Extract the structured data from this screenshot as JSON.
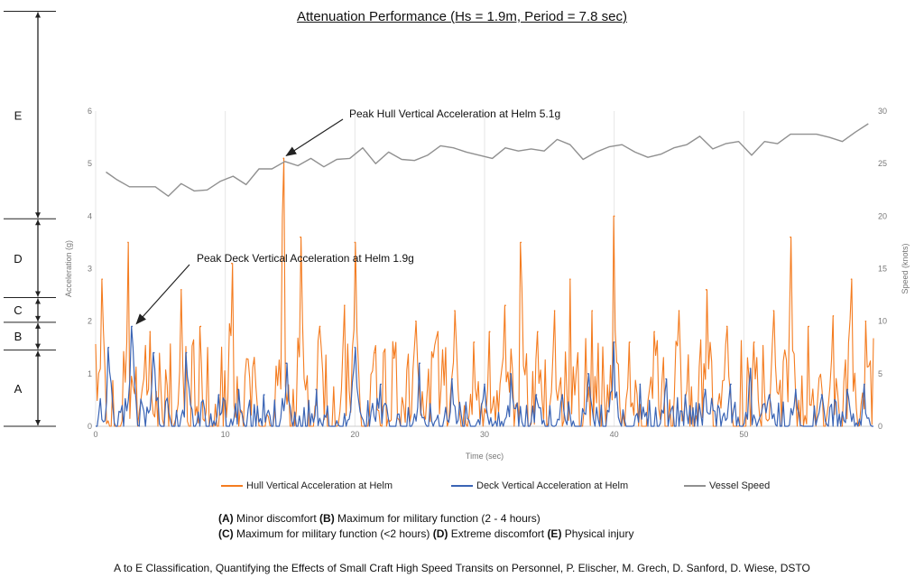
{
  "title": "Attenuation Performance (Hs = 1.9m, Period = 7.8 sec)",
  "chart_data": {
    "type": "line",
    "xlabel": "Time (sec)",
    "ylabel_left": "Acceleration (g)",
    "ylabel_right": "Speed (knots)",
    "xlim": [
      0,
      60
    ],
    "ylim_left": [
      0,
      6
    ],
    "ylim_right": [
      0,
      30
    ],
    "x_ticks": [
      "0",
      "10",
      "20",
      "30",
      "40",
      "50"
    ],
    "y_ticks_left": [
      "0",
      "1",
      "2",
      "3",
      "4",
      "5",
      "6"
    ],
    "y_ticks_right": [
      "0",
      "5",
      "10",
      "15",
      "20",
      "25",
      "30"
    ],
    "grid": "vertical",
    "legend_position": "bottom",
    "series": [
      {
        "name": "Hull Vertical Acceleration at Helm",
        "color": "#f47c20",
        "axis": "left",
        "peaks": [
          [
            0.5,
            2.8
          ],
          [
            2.5,
            3.5
          ],
          [
            4.2,
            1.8
          ],
          [
            6.6,
            2.6
          ],
          [
            8.1,
            1.9
          ],
          [
            10.5,
            3.1
          ],
          [
            12.2,
            1.2
          ],
          [
            14.5,
            5.1
          ],
          [
            15.8,
            3.6
          ],
          [
            17.3,
            1.9
          ],
          [
            19.2,
            2.3
          ],
          [
            20.0,
            3.5
          ],
          [
            21.5,
            1.4
          ],
          [
            23.0,
            1.3
          ],
          [
            24.7,
            2.0
          ],
          [
            26.4,
            1.8
          ],
          [
            27.7,
            2.2
          ],
          [
            29.2,
            1.6
          ],
          [
            30.4,
            1.8
          ],
          [
            31.6,
            2.3
          ],
          [
            32.8,
            3.5
          ],
          [
            34.1,
            1.8
          ],
          [
            35.4,
            2.2
          ],
          [
            36.6,
            2.8
          ],
          [
            38.3,
            2.2
          ],
          [
            40.0,
            4.0
          ],
          [
            41.2,
            1.6
          ],
          [
            43.1,
            1.8
          ],
          [
            45.0,
            2.2
          ],
          [
            47.1,
            2.6
          ],
          [
            48.7,
            1.9
          ],
          [
            50.8,
            1.6
          ],
          [
            52.3,
            2.2
          ],
          [
            53.6,
            3.6
          ],
          [
            55.0,
            1.9
          ],
          [
            56.9,
            2.1
          ],
          [
            58.3,
            2.8
          ],
          [
            59.4,
            2.0
          ]
        ]
      },
      {
        "name": "Deck Vertical Acceleration at Helm",
        "color": "#3a64b5",
        "axis": "left",
        "peaks": [
          [
            1.0,
            1.5
          ],
          [
            2.8,
            1.9
          ],
          [
            4.5,
            1.4
          ],
          [
            7.0,
            1.4
          ],
          [
            9.5,
            0.6
          ],
          [
            11.0,
            0.7
          ],
          [
            13.0,
            0.6
          ],
          [
            14.7,
            1.2
          ],
          [
            17.0,
            0.7
          ],
          [
            20.0,
            1.5
          ],
          [
            22.0,
            0.8
          ],
          [
            25.0,
            1.2
          ],
          [
            27.5,
            0.9
          ],
          [
            30.0,
            0.8
          ],
          [
            32.0,
            1.0
          ],
          [
            34.0,
            0.6
          ],
          [
            36.0,
            0.6
          ],
          [
            38.0,
            1.0
          ],
          [
            40.0,
            1.6
          ],
          [
            42.0,
            0.8
          ],
          [
            44.0,
            0.9
          ],
          [
            45.5,
            0.6
          ],
          [
            47.0,
            0.7
          ],
          [
            49.0,
            0.8
          ],
          [
            50.5,
            1.1
          ],
          [
            52.0,
            0.6
          ],
          [
            54.0,
            0.7
          ],
          [
            56.0,
            0.6
          ],
          [
            58.0,
            0.7
          ],
          [
            59.3,
            0.8
          ]
        ]
      },
      {
        "name": "Vessel Speed",
        "color": "#909090",
        "axis": "right",
        "points": [
          [
            0.8,
            24.2
          ],
          [
            1.6,
            23.5
          ],
          [
            2.6,
            22.8
          ],
          [
            3.6,
            22.8
          ],
          [
            4.6,
            22.8
          ],
          [
            5.6,
            21.9
          ],
          [
            6.6,
            23.1
          ],
          [
            7.6,
            22.4
          ],
          [
            8.6,
            22.5
          ],
          [
            9.6,
            23.3
          ],
          [
            10.6,
            23.8
          ],
          [
            11.6,
            23.0
          ],
          [
            12.6,
            24.5
          ],
          [
            13.6,
            24.5
          ],
          [
            14.6,
            25.2
          ],
          [
            15.6,
            24.8
          ],
          [
            16.6,
            25.5
          ],
          [
            17.6,
            24.7
          ],
          [
            18.6,
            25.4
          ],
          [
            19.6,
            25.5
          ],
          [
            20.6,
            26.5
          ],
          [
            21.6,
            25.0
          ],
          [
            22.6,
            26.1
          ],
          [
            23.6,
            25.4
          ],
          [
            24.6,
            25.3
          ],
          [
            25.6,
            25.8
          ],
          [
            26.6,
            26.7
          ],
          [
            27.6,
            26.5
          ],
          [
            28.6,
            26.1
          ],
          [
            29.6,
            25.8
          ],
          [
            30.6,
            25.5
          ],
          [
            31.6,
            26.5
          ],
          [
            32.6,
            26.2
          ],
          [
            33.6,
            26.4
          ],
          [
            34.6,
            26.2
          ],
          [
            35.6,
            27.3
          ],
          [
            36.6,
            26.8
          ],
          [
            37.6,
            25.4
          ],
          [
            38.6,
            26.1
          ],
          [
            39.6,
            26.6
          ],
          [
            40.6,
            26.8
          ],
          [
            41.6,
            26.1
          ],
          [
            42.6,
            25.6
          ],
          [
            43.6,
            25.9
          ],
          [
            44.6,
            26.5
          ],
          [
            45.6,
            26.8
          ],
          [
            46.6,
            27.6
          ],
          [
            47.6,
            26.4
          ],
          [
            48.6,
            26.9
          ],
          [
            49.6,
            27.1
          ],
          [
            50.6,
            25.8
          ],
          [
            51.6,
            27.1
          ],
          [
            52.6,
            26.9
          ],
          [
            53.6,
            27.8
          ],
          [
            54.6,
            27.8
          ],
          [
            55.6,
            27.8
          ],
          [
            56.6,
            27.5
          ],
          [
            57.6,
            27.1
          ],
          [
            58.6,
            28.0
          ],
          [
            59.6,
            28.8
          ]
        ]
      }
    ],
    "annotations": [
      {
        "text": "Peak Hull Vertical Acceleration at Helm 5.1g",
        "x": 14.5,
        "y": 5.1
      },
      {
        "text": "Peak Deck Vertical Acceleration at Helm 1.9g",
        "x": 2.8,
        "y": 1.9
      }
    ],
    "bands": [
      {
        "label": "A",
        "from": 0,
        "to": 1.45
      },
      {
        "label": "B",
        "from": 1.45,
        "to": 1.98
      },
      {
        "label": "C",
        "from": 1.98,
        "to": 2.45
      },
      {
        "label": "D",
        "from": 2.45,
        "to": 3.95
      },
      {
        "label": "E",
        "from": 3.95,
        "to": 7.9
      }
    ]
  },
  "classifications": {
    "line1": [
      {
        "code": "(A)",
        "text": " Minor discomfort "
      },
      {
        "code": "(B)",
        "text": " Maximum for military function (2 - 4 hours)"
      }
    ],
    "line2": [
      {
        "code": "(C)",
        "text": " Maximum for military function (<2 hours) "
      },
      {
        "code": "(D)",
        "text": " Extreme discomfort "
      },
      {
        "code": "(E)",
        "text": " Physical injury"
      }
    ]
  },
  "caption": "A to E Classification, Quantifying the Effects of Small Craft High Speed Transits on Personnel, P.  Elischer, M. Grech, D. Sanford, D. Wiese, DSTO"
}
